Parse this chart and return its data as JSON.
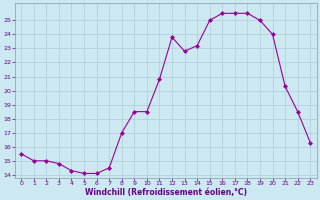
{
  "x": [
    0,
    1,
    2,
    3,
    4,
    5,
    6,
    7,
    8,
    9,
    10,
    11,
    12,
    13,
    14,
    15,
    16,
    17,
    18,
    19,
    20,
    21,
    22,
    23
  ],
  "y": [
    15.5,
    15.0,
    15.0,
    14.8,
    14.3,
    14.1,
    14.1,
    14.5,
    17.0,
    18.5,
    18.5,
    20.8,
    23.8,
    22.8,
    23.2,
    25.0,
    25.5,
    25.5,
    25.5,
    25.0,
    24.0,
    20.3,
    18.5,
    16.3
  ],
  "line_color": "#990099",
  "marker": "D",
  "marker_size": 2.0,
  "bg_color": "#cce8f0",
  "grid_color": "#b0ccd8",
  "xlabel": "Windchill (Refroidissement éolien,°C)",
  "xlabel_color": "#660088",
  "tick_color": "#660088",
  "ylim": [
    13.8,
    26.2
  ],
  "xlim": [
    -0.5,
    23.5
  ],
  "yticks": [
    14,
    15,
    16,
    17,
    18,
    19,
    20,
    21,
    22,
    23,
    24,
    25
  ],
  "xticks": [
    0,
    1,
    2,
    3,
    4,
    5,
    6,
    7,
    8,
    9,
    10,
    11,
    12,
    13,
    14,
    15,
    16,
    17,
    18,
    19,
    20,
    21,
    22,
    23
  ]
}
